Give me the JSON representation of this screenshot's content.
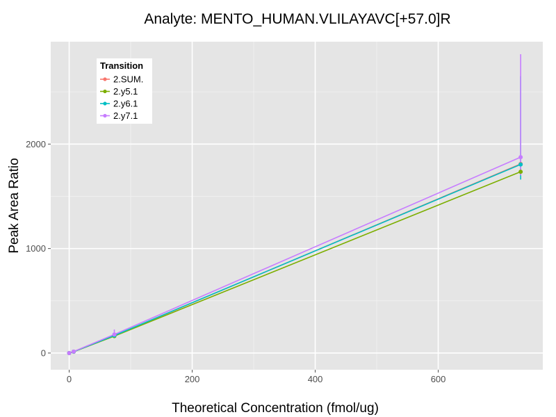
{
  "chart_data": {
    "type": "line",
    "title": "Analyte: MENTO_HUMAN.VLILAYAVC[+57.0]R",
    "xlabel": "Theoretical Concentration (fmol/ug)",
    "ylabel": "Peak Area Ratio",
    "xlim": [
      -30,
      770
    ],
    "ylim": [
      -160,
      2980
    ],
    "x_ticks": [
      0,
      200,
      400,
      600
    ],
    "y_ticks": [
      0,
      1000,
      2000
    ],
    "grid": true,
    "background": "#e5e5e5",
    "legend": {
      "title": "Transition",
      "position": "top-left"
    },
    "series": [
      {
        "name": "2.SUM.",
        "color": "#f8766d",
        "points": [
          {
            "x": 0,
            "y": 0
          },
          {
            "x": 7.3,
            "y": 13
          },
          {
            "x": 73.4,
            "y": 165,
            "err": [
              150,
              178
            ]
          },
          {
            "x": 734,
            "y": 1810,
            "err": [
              1780,
              1840
            ]
          }
        ]
      },
      {
        "name": "2.y5.1",
        "color": "#7cae00",
        "points": [
          {
            "x": 0,
            "y": 0
          },
          {
            "x": 7.3,
            "y": 12
          },
          {
            "x": 73.4,
            "y": 162,
            "err": [
              150,
              175
            ]
          },
          {
            "x": 734,
            "y": 1735,
            "err": [
              1700,
              1770
            ]
          }
        ]
      },
      {
        "name": "2.y6.1",
        "color": "#00bfc4",
        "points": [
          {
            "x": 0,
            "y": 0
          },
          {
            "x": 7.3,
            "y": 13
          },
          {
            "x": 73.4,
            "y": 168,
            "err": [
              155,
              182
            ]
          },
          {
            "x": 734,
            "y": 1805,
            "err": [
              1660,
              2650
            ]
          }
        ]
      },
      {
        "name": "2.y7.1",
        "color": "#c77cff",
        "points": [
          {
            "x": 0,
            "y": 0
          },
          {
            "x": 7.3,
            "y": 14
          },
          {
            "x": 73.4,
            "y": 178,
            "err": [
              160,
              225
            ]
          },
          {
            "x": 734,
            "y": 1875,
            "err": [
              1700,
              2860
            ]
          }
        ]
      }
    ]
  }
}
